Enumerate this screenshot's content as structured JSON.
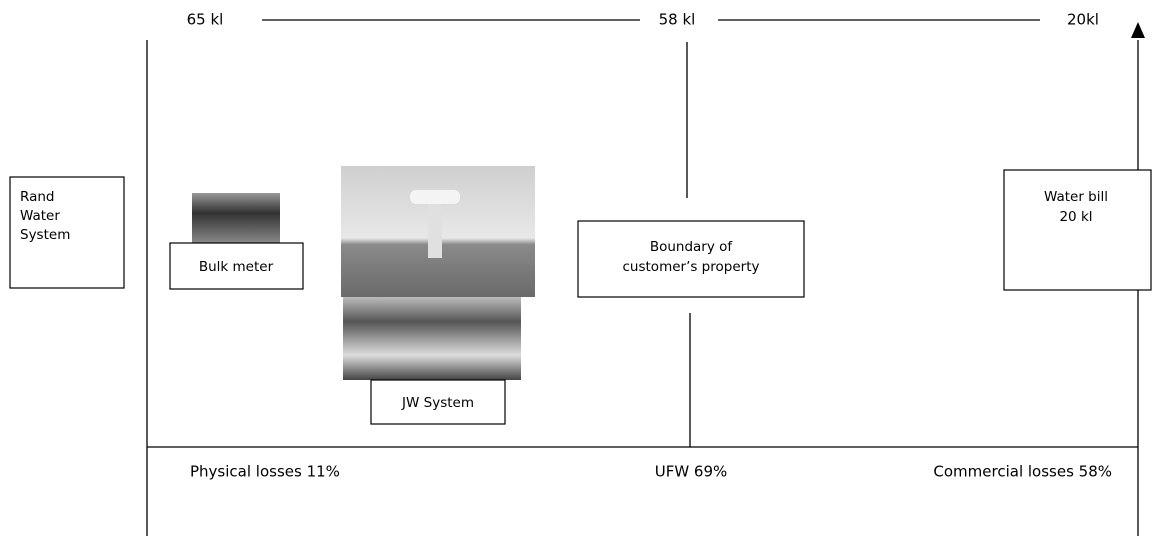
{
  "flow_labels": [
    "65 kl",
    "58 kl",
    "20kl"
  ],
  "boxes": {
    "rand_water": [
      "Rand",
      "Water",
      "System"
    ],
    "bulk_meter": [
      "Bulk meter"
    ],
    "jw_system": [
      "JW System"
    ],
    "boundary": [
      "Boundary of",
      "customer’s property"
    ],
    "water_bill": [
      "Water bill",
      "20 kl"
    ]
  },
  "loss_labels": [
    "Physical losses 11%",
    "UFW 69%",
    "Commercial losses 58%"
  ]
}
